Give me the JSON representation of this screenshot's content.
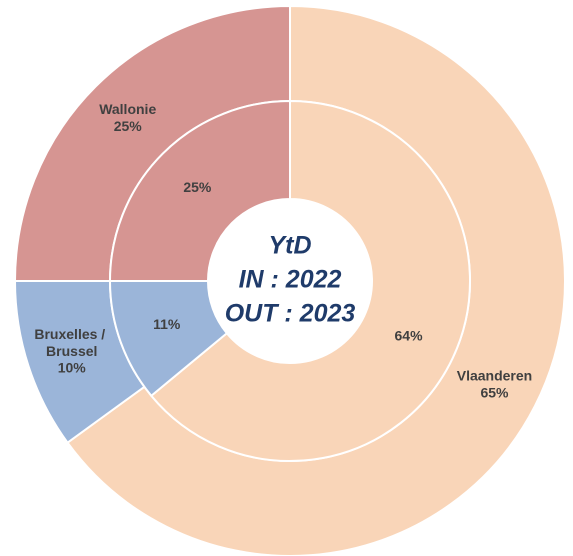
{
  "chart_data": {
    "type": "pie",
    "categories": [
      "Vlaanderen",
      "Bruxelles / Brussel",
      "Wallonie"
    ],
    "colors": [
      "#f9d5b8",
      "#9bb5d9",
      "#d69592"
    ],
    "rings": [
      {
        "values": [
          65,
          10,
          25
        ],
        "value_labels": [
          "65%",
          "10%",
          "25%"
        ]
      },
      {
        "values": [
          64,
          11,
          25
        ],
        "value_labels": [
          "64%",
          "11%",
          "25%"
        ]
      }
    ],
    "center_text": [
      "YtD",
      "IN : 2022",
      "OUT : 2023"
    ]
  }
}
